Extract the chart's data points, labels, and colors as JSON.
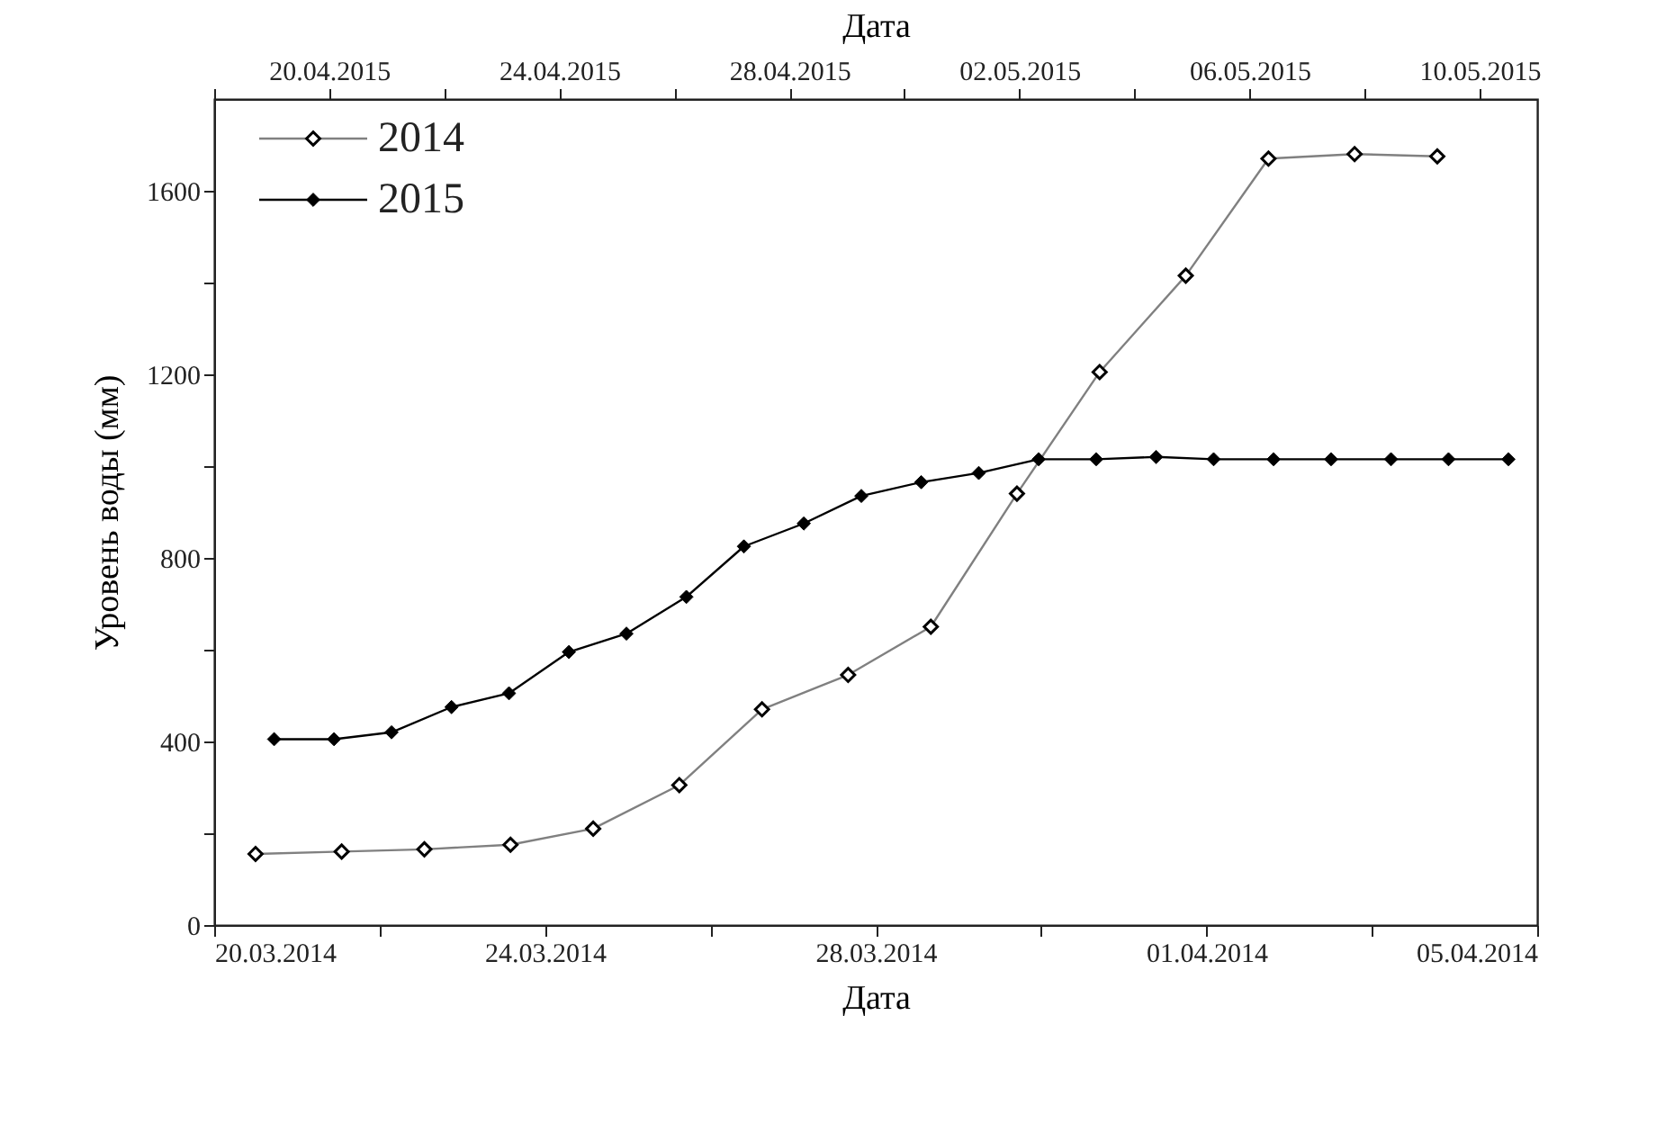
{
  "chart_data": {
    "type": "line",
    "xlabel": "Дата",
    "x2label": "Дата",
    "ylabel": "Уровень воды (мм)",
    "marker": "diamond",
    "legend": "top left",
    "grid": false,
    "xlim": [
      "2014-03-20",
      "2014-04-05"
    ],
    "xticks": [
      {
        "value": "2014-03-20",
        "label": "20.03.2014"
      },
      {
        "value": "2014-03-22",
        "label": null
      },
      {
        "value": "2014-03-24",
        "label": "24.03.2014"
      },
      {
        "value": "2014-03-26",
        "label": null
      },
      {
        "value": "2014-03-28",
        "label": "28.03.2014"
      },
      {
        "value": "2014-03-30",
        "label": null
      },
      {
        "value": "2014-04-01",
        "label": "01.04.2014"
      },
      {
        "value": "2014-04-03",
        "label": null
      },
      {
        "value": "2014-04-05",
        "label": "05.04.2014"
      }
    ],
    "x2lim": [
      "2015-04-18",
      "2015-05-11"
    ],
    "x2ticks": [
      {
        "value": "2015-04-18",
        "label": null
      },
      {
        "value": "2015-04-20",
        "label": "20.04.2015"
      },
      {
        "value": "2015-04-22",
        "label": null
      },
      {
        "value": "2015-04-24",
        "label": "24.04.2015"
      },
      {
        "value": "2015-04-26",
        "label": null
      },
      {
        "value": "2015-04-28",
        "label": "28.04.2015"
      },
      {
        "value": "2015-04-30",
        "label": null
      },
      {
        "value": "2015-05-02",
        "label": "02.05.2015"
      },
      {
        "value": "2015-05-04",
        "label": null
      },
      {
        "value": "2015-05-06",
        "label": "06.05.2015"
      },
      {
        "value": "2015-05-08",
        "label": null
      },
      {
        "value": "2015-05-10",
        "label": "10.05.2015"
      }
    ],
    "ylim": [
      0,
      1800
    ],
    "yticks": [
      0,
      {
        "value": 200,
        "label": null
      },
      400,
      {
        "value": 600,
        "label": null
      },
      800,
      {
        "value": 1000,
        "label": null
      },
      1200,
      {
        "value": 1400,
        "label": null
      },
      1600
    ],
    "series": [
      {
        "name": "2014",
        "color": "#808080",
        "x": [
          "2014-03-20T12:00",
          "2014-03-21T13:00",
          "2014-03-22T13:00",
          "2014-03-23T14:00",
          "2014-03-24T14:00",
          "2014-03-25T15:00",
          "2014-03-26T15:00",
          "2014-03-27T16:00",
          "2014-03-28T16:00",
          "2014-03-29T17:00",
          "2014-03-30T17:00",
          "2014-03-31T18:00",
          "2014-04-01T18:00",
          "2014-04-02T19:00",
          "2014-04-03T19:00"
        ],
        "values": [
          155,
          160,
          165,
          175,
          210,
          305,
          470,
          545,
          650,
          940,
          1205,
          1415,
          1670,
          1680,
          1675
        ]
      },
      {
        "name": "2015",
        "color": "#000000",
        "axis": "x2",
        "x": [
          "2015-04-19T01:00",
          "2015-04-20T02:00",
          "2015-04-21T02:00",
          "2015-04-22T03:00",
          "2015-04-23T03:00",
          "2015-04-24T04:00",
          "2015-04-25T04:00",
          "2015-04-26T05:00",
          "2015-04-27T05:00",
          "2015-04-28T06:00",
          "2015-04-29T06:00",
          "2015-04-30T07:00",
          "2015-05-01T07:00",
          "2015-05-02T08:00",
          "2015-05-03T08:00",
          "2015-05-04T09:00",
          "2015-05-05T09:00",
          "2015-05-06T10:00",
          "2015-05-07T10:00",
          "2015-05-08T11:00",
          "2015-05-09T11:00",
          "2015-05-10T12:00"
        ],
        "values": [
          405,
          405,
          420,
          475,
          505,
          595,
          635,
          715,
          825,
          875,
          935,
          965,
          985,
          1015,
          1015,
          1020,
          1015,
          1015,
          1015,
          1015,
          1015,
          1015
        ]
      }
    ]
  }
}
